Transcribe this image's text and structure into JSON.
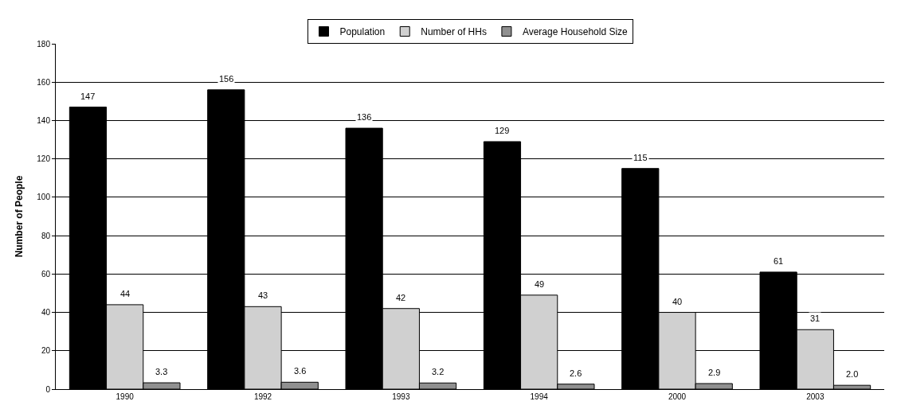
{
  "chart_data": {
    "type": "bar",
    "categories": [
      "1990",
      "1992",
      "1993",
      "1994",
      "2000",
      "2003"
    ],
    "ylabel": "Number of People",
    "series": [
      {
        "name": "Population",
        "color": "#000000",
        "values": [
          147,
          156,
          136,
          129,
          115,
          61
        ],
        "value_labels": [
          "147",
          "156",
          "136",
          "129",
          "115",
          "61"
        ]
      },
      {
        "name": "Number of HHs",
        "color": "#d0d0d0",
        "values": [
          44,
          43,
          42,
          49,
          40,
          31
        ],
        "value_labels": [
          "44",
          "43",
          "42",
          "49",
          "40",
          "31"
        ]
      },
      {
        "name": "Average Household Size",
        "color": "#909090",
        "values": [
          3.3,
          3.6,
          3.2,
          2.6,
          2.9,
          2.0
        ],
        "value_labels": [
          "3.3",
          "3.6",
          "3.2",
          "2.6",
          "2.9",
          "2.0"
        ]
      }
    ],
    "ylim": [
      0,
      180
    ],
    "yticks": [
      0,
      20,
      40,
      60,
      80,
      100,
      120,
      140,
      160,
      180
    ],
    "grid": "y",
    "legend": "top"
  }
}
